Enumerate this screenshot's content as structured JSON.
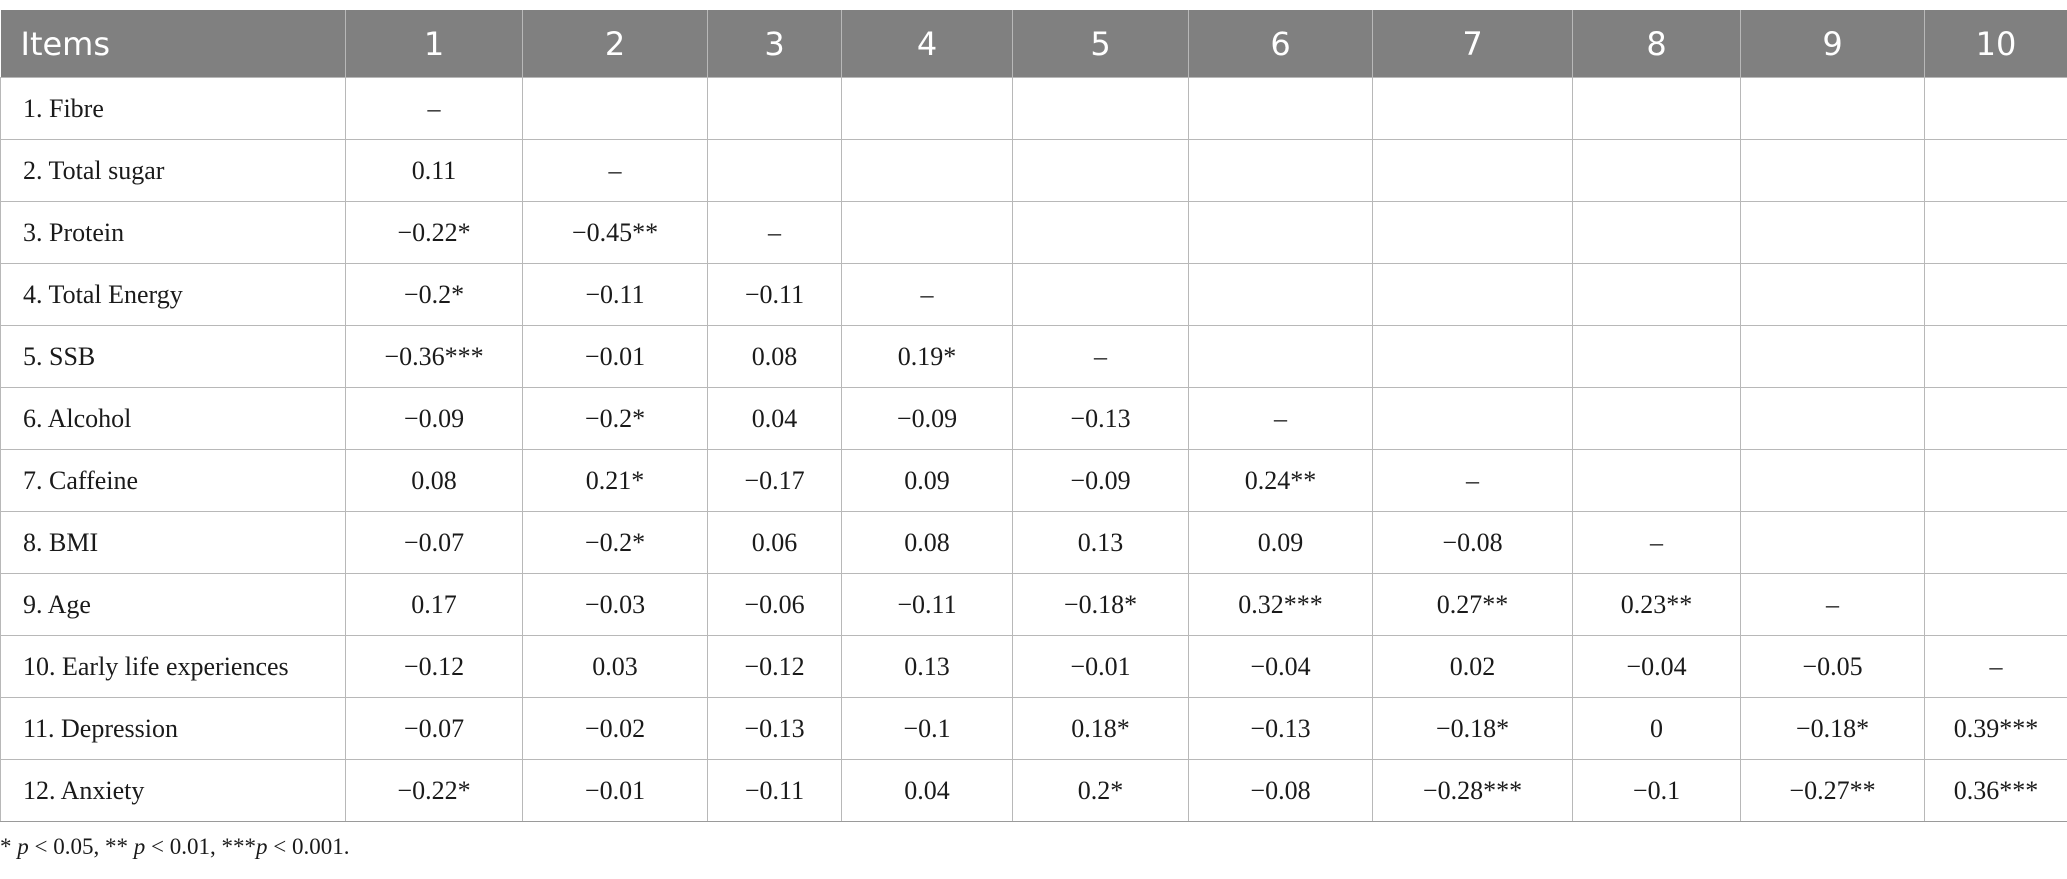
{
  "table": {
    "headers": [
      "Items",
      "1",
      "2",
      "3",
      "4",
      "5",
      "6",
      "7",
      "8",
      "9",
      "10"
    ],
    "rows": [
      {
        "item": "1.  Fibre",
        "cells": [
          "–",
          "",
          "",
          "",
          "",
          "",
          "",
          "",
          "",
          ""
        ]
      },
      {
        "item": "2.  Total sugar",
        "cells": [
          "0.11",
          "–",
          "",
          "",
          "",
          "",
          "",
          "",
          "",
          ""
        ]
      },
      {
        "item": "3.  Protein",
        "cells": [
          "−0.22*",
          "−0.45**",
          "–",
          "",
          "",
          "",
          "",
          "",
          "",
          ""
        ]
      },
      {
        "item": "4.  Total Energy",
        "cells": [
          "−0.2*",
          "−0.11",
          "−0.11",
          "–",
          "",
          "",
          "",
          "",
          "",
          ""
        ]
      },
      {
        "item": "5.  SSB",
        "cells": [
          "−0.36***",
          "−0.01",
          "0.08",
          "0.19*",
          "–",
          "",
          "",
          "",
          "",
          ""
        ]
      },
      {
        "item": "6.  Alcohol",
        "cells": [
          "−0.09",
          "−0.2*",
          "0.04",
          "−0.09",
          "−0.13",
          "–",
          "",
          "",
          "",
          ""
        ]
      },
      {
        "item": "7.  Caffeine",
        "cells": [
          "0.08",
          "0.21*",
          "−0.17",
          "0.09",
          "−0.09",
          "0.24**",
          "–",
          "",
          "",
          ""
        ]
      },
      {
        "item": "8.  BMI",
        "cells": [
          "−0.07",
          "−0.2*",
          "0.06",
          "0.08",
          "0.13",
          "0.09",
          "−0.08",
          "–",
          "",
          ""
        ]
      },
      {
        "item": "9.  Age",
        "cells": [
          "0.17",
          "−0.03",
          "−0.06",
          "−0.11",
          "−0.18*",
          "0.32***",
          "0.27**",
          "0.23**",
          "–",
          ""
        ]
      },
      {
        "item": "10.  Early life experiences",
        "cells": [
          "−0.12",
          "0.03",
          "−0.12",
          "0.13",
          "−0.01",
          "−0.04",
          "0.02",
          "−0.04",
          "−0.05",
          "–"
        ]
      },
      {
        "item": "11.  Depression",
        "cells": [
          "−0.07",
          "−0.02",
          "−0.13",
          "−0.1",
          "0.18*",
          "−0.13",
          "−0.18*",
          "0",
          "−0.18*",
          "0.39***"
        ]
      },
      {
        "item": "12.  Anxiety",
        "cells": [
          "−0.22*",
          "−0.01",
          "−0.11",
          "0.04",
          "0.2*",
          "−0.08",
          "−0.28***",
          "−0.1",
          "−0.27**",
          "0.36***"
        ]
      }
    ]
  },
  "footnote": {
    "parts": [
      {
        "text": "* ",
        "italic": false
      },
      {
        "text": "p",
        "italic": true
      },
      {
        "text": " < 0.05, ** ",
        "italic": false
      },
      {
        "text": "p",
        "italic": true
      },
      {
        "text": " < 0.01, ***",
        "italic": false
      },
      {
        "text": "p",
        "italic": true
      },
      {
        "text": " < 0.001.",
        "italic": false
      }
    ]
  }
}
